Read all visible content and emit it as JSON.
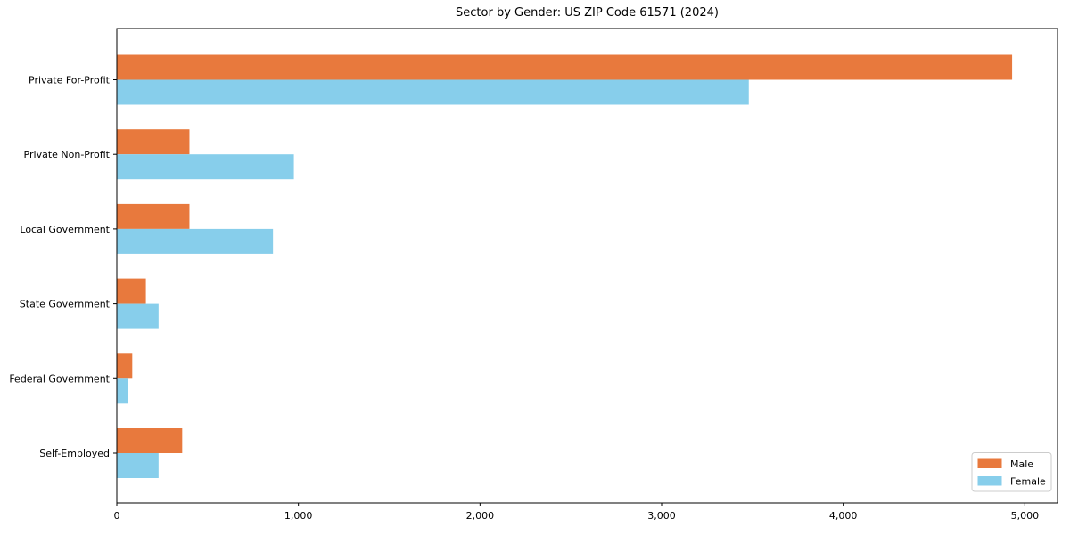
{
  "figure": {
    "background": "#ffffff",
    "axis_color": "#000000",
    "legend_border_color": "#cccccc",
    "legend_background": "#ffffff"
  },
  "chart_data": {
    "type": "bar",
    "orientation": "horizontal",
    "title": "Sector by Gender: US ZIP Code 61571 (2024)",
    "xlabel": "",
    "ylabel": "",
    "grid": false,
    "categories": [
      "Private For-Profit",
      "Private Non-Profit",
      "Local Government",
      "State Government",
      "Federal Government",
      "Self-Employed"
    ],
    "series": [
      {
        "name": "Male",
        "color": "#E8793D",
        "values": [
          4930,
          400,
          400,
          160,
          85,
          360
        ]
      },
      {
        "name": "Female",
        "color": "#87CEEB",
        "values": [
          3480,
          975,
          860,
          230,
          60,
          230
        ]
      }
    ],
    "xlim": [
      0,
      5180
    ],
    "x_ticks": {
      "values": [
        0,
        1000,
        2000,
        3000,
        4000,
        5000
      ],
      "labels": [
        "0",
        "1,000",
        "2,000",
        "3,000",
        "4,000",
        "5,000"
      ]
    },
    "legend": {
      "position": "lower-right",
      "entries": [
        {
          "label": "Male",
          "color": "#E8793D"
        },
        {
          "label": "Female",
          "color": "#87CEEB"
        }
      ]
    }
  }
}
